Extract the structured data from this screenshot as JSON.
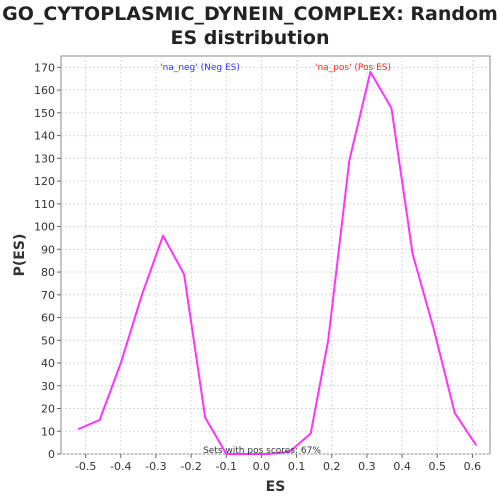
{
  "chart_data": {
    "type": "line",
    "title_line1": "GO_CYTOPLASMIC_DYNEIN_COMPLEX: Random",
    "title_line2": "ES distribution",
    "xlabel": "ES",
    "ylabel": "P(ES)",
    "xlim": [
      -0.57,
      0.65
    ],
    "ylim": [
      0,
      175
    ],
    "xticks": [
      -0.5,
      -0.4,
      -0.3,
      -0.2,
      -0.1,
      0.0,
      0.1,
      0.2,
      0.3,
      0.4,
      0.5,
      0.6
    ],
    "xtick_labels": [
      "-0.5",
      "-0.4",
      "-0.3",
      "-0.2",
      "-0.1",
      "0.0",
      "0.1",
      "0.2",
      "0.3",
      "0.4",
      "0.5",
      "0.6"
    ],
    "yticks": [
      0,
      10,
      20,
      30,
      40,
      50,
      60,
      70,
      80,
      90,
      100,
      110,
      120,
      130,
      140,
      150,
      160,
      170
    ],
    "grid": true,
    "series": [
      {
        "color": "#ff33ff",
        "x": [
          -0.52,
          -0.46,
          -0.4,
          -0.34,
          -0.28,
          -0.22,
          -0.16,
          -0.1,
          -0.04,
          0.02,
          0.08,
          0.14,
          0.19,
          0.25,
          0.31,
          0.37,
          0.43,
          0.49,
          0.55,
          0.61
        ],
        "y": [
          11,
          15,
          40,
          70,
          96,
          79,
          16,
          0,
          0,
          0,
          1,
          9,
          50,
          129,
          168,
          152,
          88,
          55,
          18,
          4
        ]
      }
    ],
    "legend": [
      {
        "label": "'na_neg' (Neg ES)",
        "color": "#3333ff"
      },
      {
        "label": "'na_pos' (Pos ES)",
        "color": "#ff2222"
      }
    ],
    "annotation": "Sets with pos scores: 67%"
  }
}
